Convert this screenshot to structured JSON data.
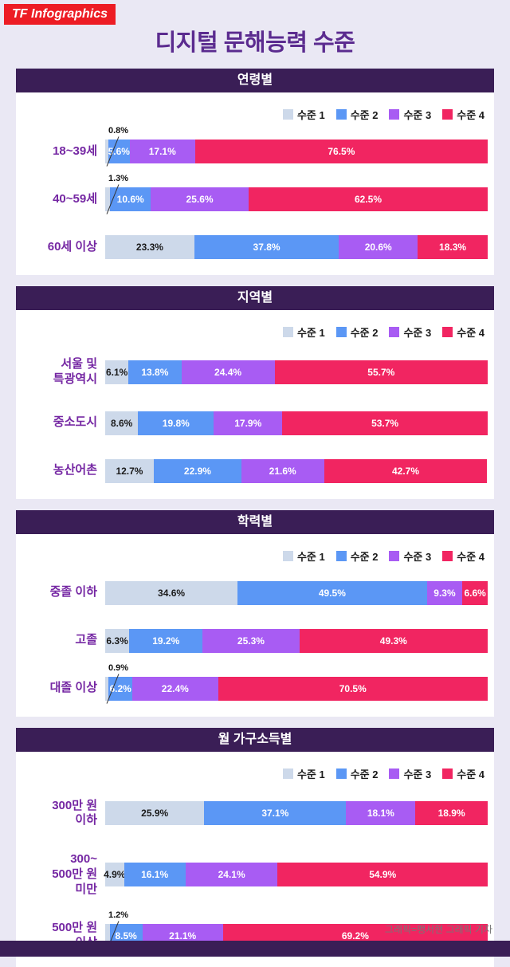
{
  "page": {
    "logo": "TF Infographics",
    "title": "디지털 문해능력 수준",
    "credit": "그래픽=팽서현 그래픽 기자"
  },
  "legend": [
    {
      "label": "수준 1",
      "color": "#cdd9ea"
    },
    {
      "label": "수준 2",
      "color": "#5b97f5"
    },
    {
      "label": "수준 3",
      "color": "#a85cf3"
    },
    {
      "label": "수준 4",
      "color": "#f12561"
    }
  ],
  "colors": {
    "background": "#eae8f4",
    "logo_bg": "#ed1c24",
    "title": "#5b2b8f",
    "section_header_bg": "#3a1e56",
    "row_label": "#7527a3",
    "level1": "#cdd9ea",
    "level2": "#5b97f5",
    "level3": "#a85cf3",
    "level4": "#f12561"
  },
  "chart_data": [
    {
      "type": "bar",
      "stacked": true,
      "unit": "%",
      "title": "연령별",
      "series_names": [
        "수준 1",
        "수준 2",
        "수준 3",
        "수준 4"
      ],
      "xlim": [
        0,
        100
      ],
      "rows": [
        {
          "label": "18~39세",
          "values": [
            0.8,
            5.6,
            17.1,
            76.5
          ]
        },
        {
          "label": "40~59세",
          "values": [
            1.3,
            10.6,
            25.6,
            62.5
          ]
        },
        {
          "label": "60세 이상",
          "values": [
            23.3,
            37.8,
            20.6,
            18.3
          ]
        }
      ]
    },
    {
      "type": "bar",
      "stacked": true,
      "unit": "%",
      "title": "지역별",
      "series_names": [
        "수준 1",
        "수준 2",
        "수준 3",
        "수준 4"
      ],
      "xlim": [
        0,
        100
      ],
      "rows": [
        {
          "label": "서울 및\n특광역시",
          "values": [
            6.1,
            13.8,
            24.4,
            55.7
          ]
        },
        {
          "label": "중소도시",
          "values": [
            8.6,
            19.8,
            17.9,
            53.7
          ]
        },
        {
          "label": "농산어촌",
          "values": [
            12.7,
            22.9,
            21.6,
            42.7
          ]
        }
      ]
    },
    {
      "type": "bar",
      "stacked": true,
      "unit": "%",
      "title": "학력별",
      "series_names": [
        "수준 1",
        "수준 2",
        "수준 3",
        "수준 4"
      ],
      "xlim": [
        0,
        100
      ],
      "rows": [
        {
          "label": "중졸 이하",
          "values": [
            34.6,
            49.5,
            9.3,
            6.6
          ]
        },
        {
          "label": "고졸",
          "values": [
            6.3,
            19.2,
            25.3,
            49.3
          ]
        },
        {
          "label": "대졸 이상",
          "values": [
            0.9,
            6.2,
            22.4,
            70.5
          ]
        }
      ]
    },
    {
      "type": "bar",
      "stacked": true,
      "unit": "%",
      "title": "월 가구소득별",
      "series_names": [
        "수준 1",
        "수준 2",
        "수준 3",
        "수준 4"
      ],
      "xlim": [
        0,
        100
      ],
      "rows": [
        {
          "label": "300만 원\n이하",
          "values": [
            25.9,
            37.1,
            18.1,
            18.9
          ]
        },
        {
          "label": "300~\n500만 원\n미만",
          "values": [
            4.9,
            16.1,
            24.1,
            54.9
          ]
        },
        {
          "label": "500만 원\n이상",
          "values": [
            1.2,
            8.5,
            21.1,
            69.2
          ]
        }
      ]
    }
  ]
}
